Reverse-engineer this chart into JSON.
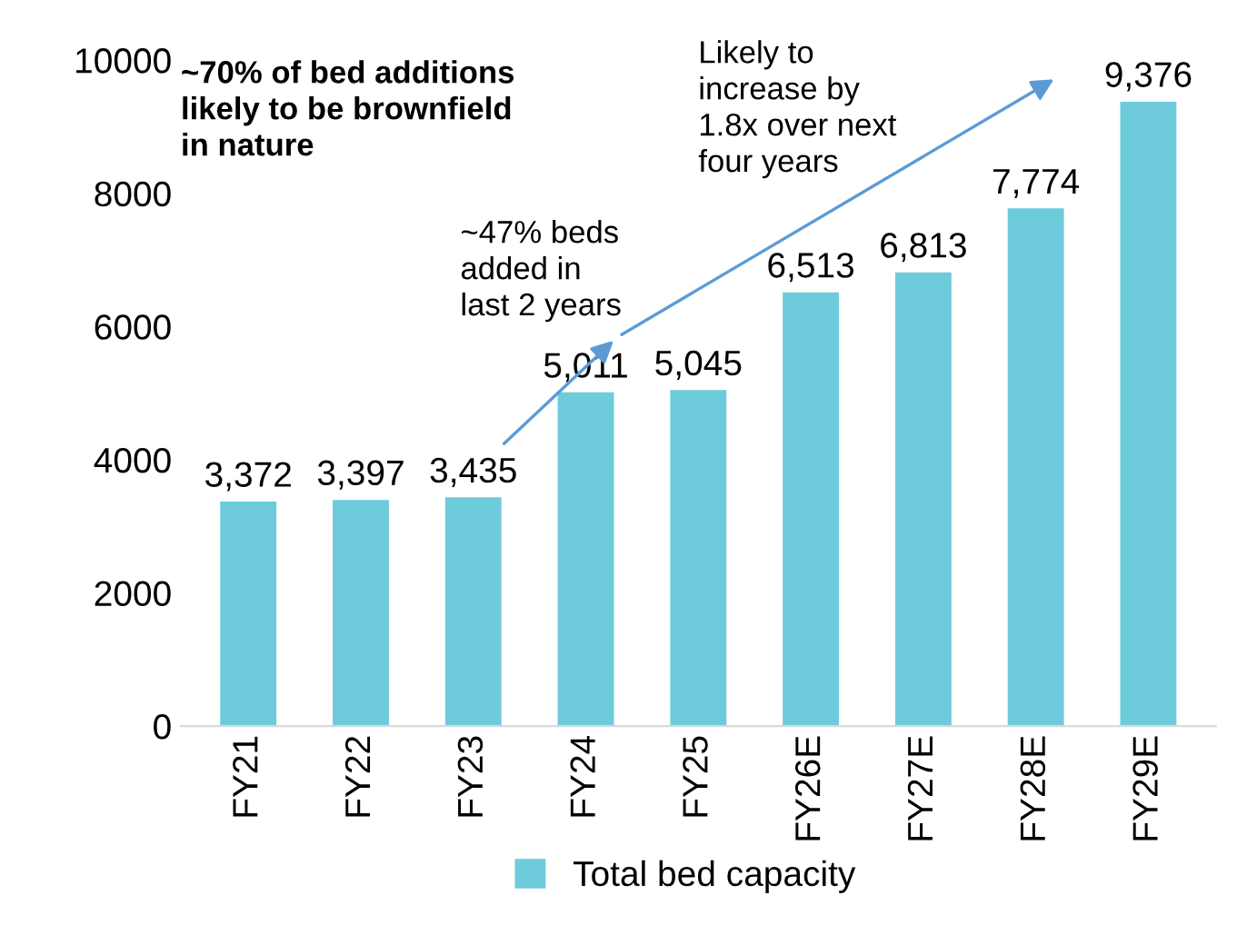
{
  "chart_data": {
    "type": "bar",
    "categories": [
      "FY21",
      "FY22",
      "FY23",
      "FY24",
      "FY25",
      "FY26E",
      "FY27E",
      "FY28E",
      "FY29E"
    ],
    "series": [
      {
        "name": "Total bed capacity",
        "color": "#6ecbdc",
        "values": [
          3372,
          3397,
          3435,
          5011,
          5045,
          6513,
          6813,
          7774,
          9376
        ],
        "value_labels": [
          "3,372",
          "3,397",
          "3,435",
          "5,011",
          "5,045",
          "6,513",
          "6,813",
          "7,774",
          "9,376"
        ]
      }
    ],
    "ylim": [
      0,
      10000
    ],
    "yticks": [
      0,
      2000,
      4000,
      6000,
      8000,
      10000
    ],
    "grid": false,
    "legend": "bottom",
    "annotations": [
      "~70% of bed additions likely to be brownfield in nature",
      "~47% beds added in last 2 years",
      "Likely to increase by 1.8x over next four years"
    ]
  }
}
